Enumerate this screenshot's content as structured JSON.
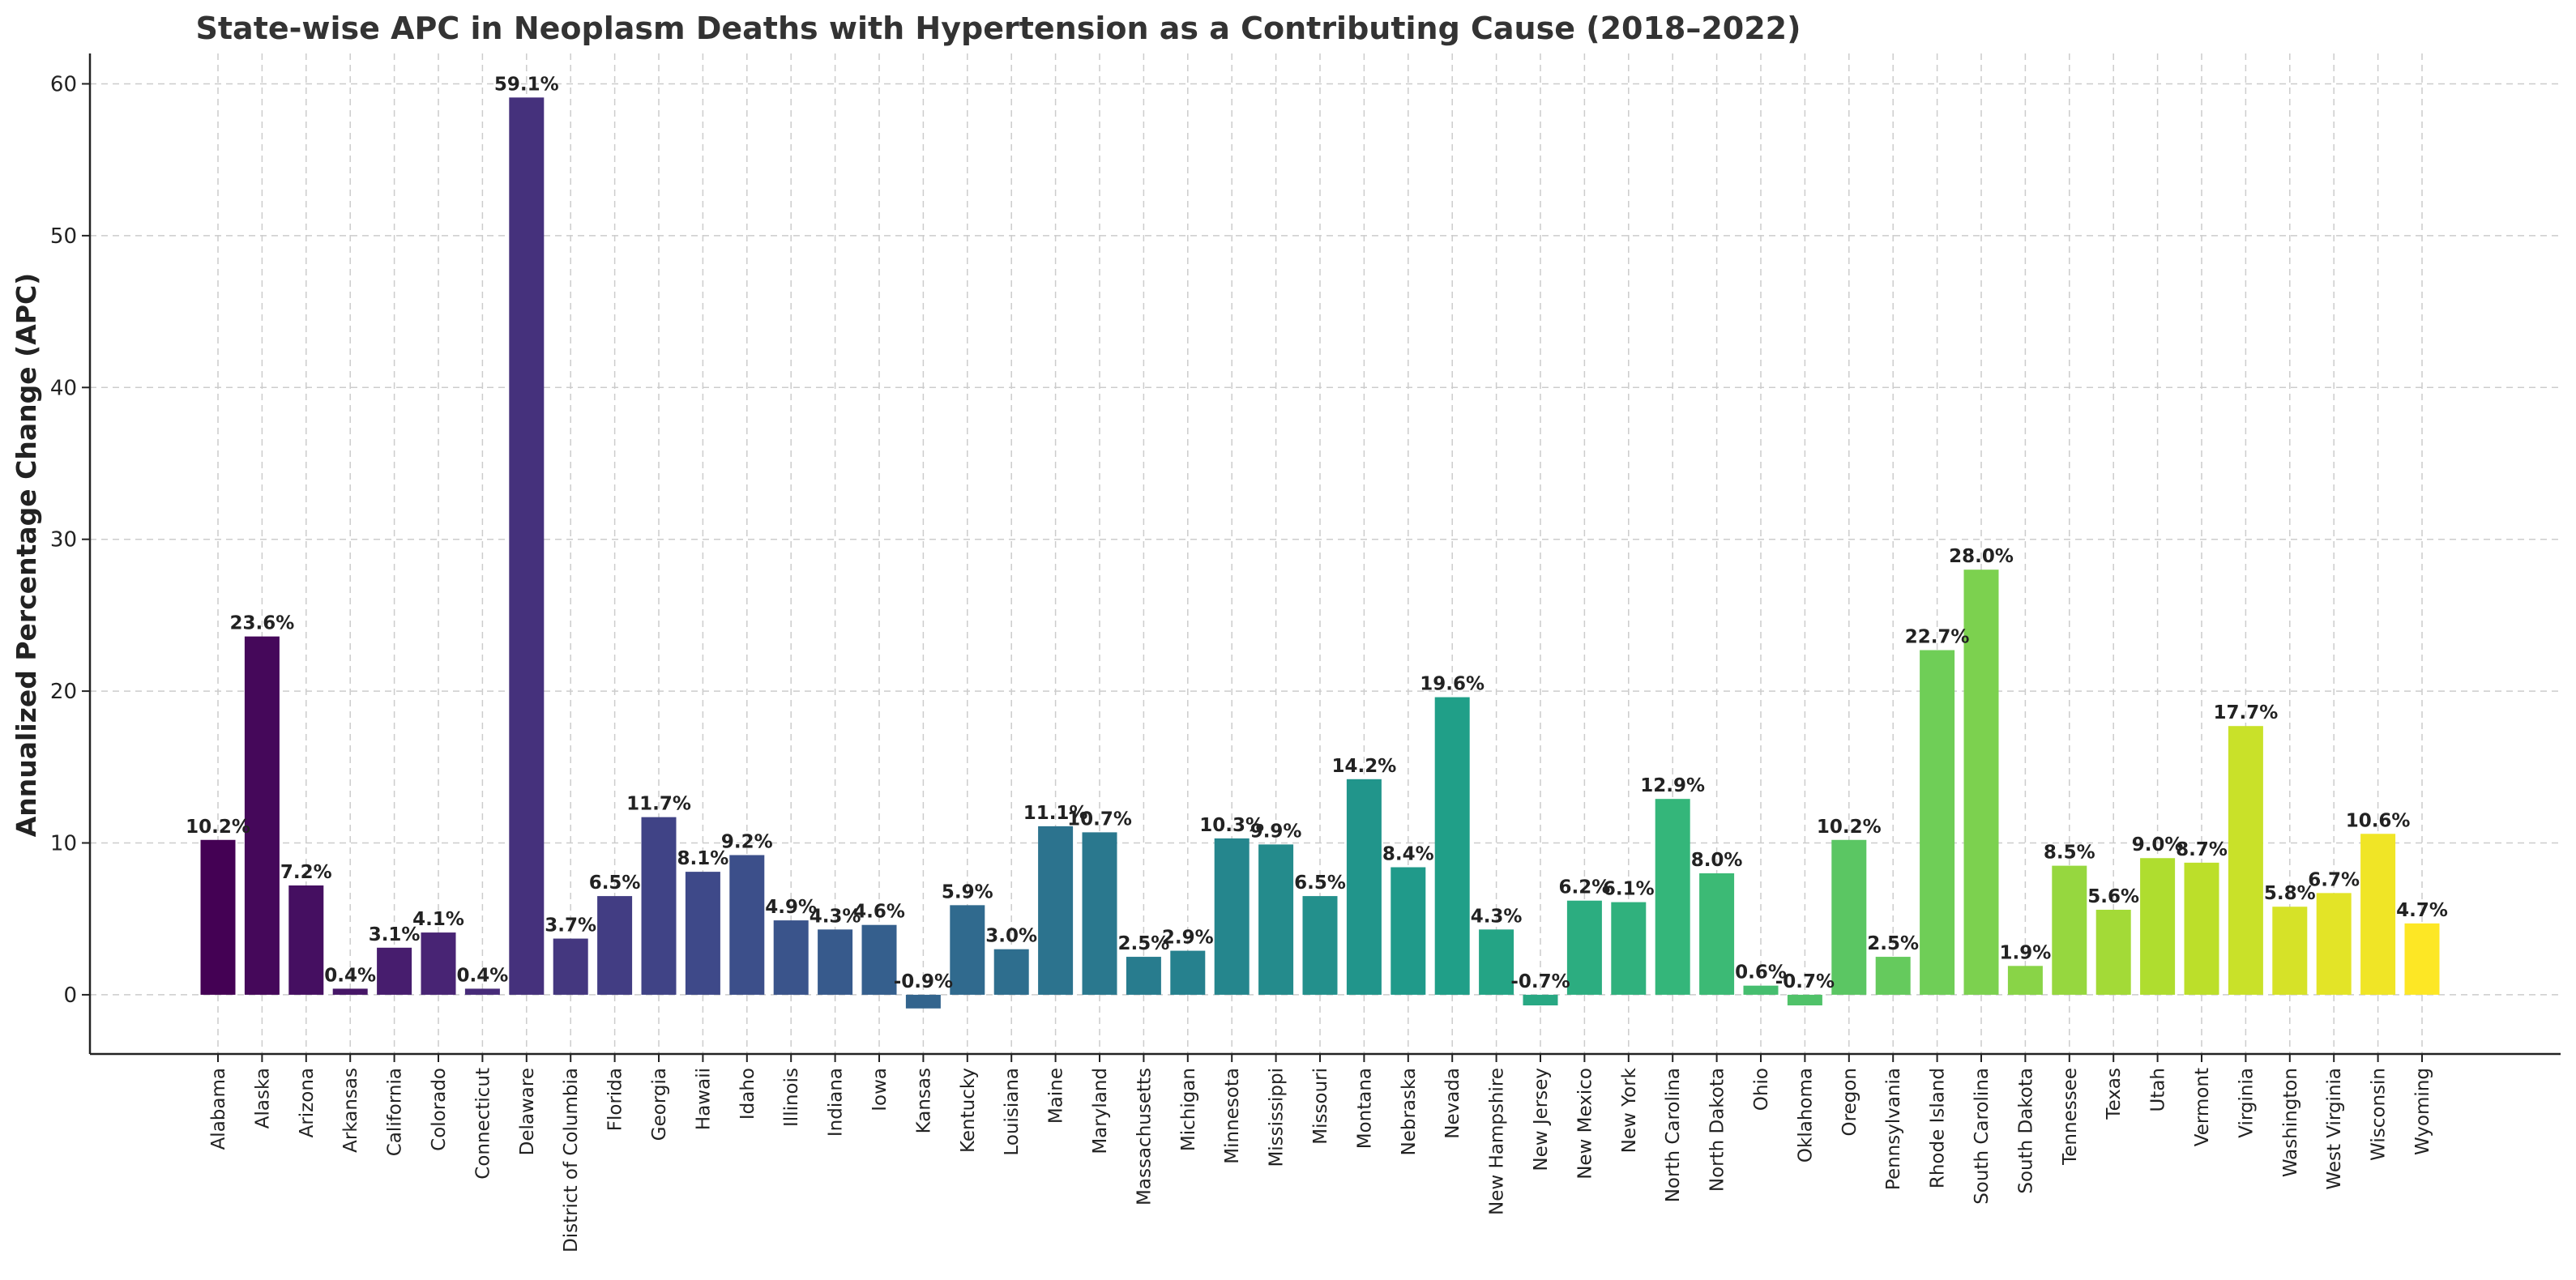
{
  "chart_data": {
    "type": "bar",
    "title": "State-wise APC in Neoplasm Deaths with Hypertension as a Contributing Cause (2018–2022)",
    "xlabel": "",
    "ylabel": "Annualized Percentage Change (APC)",
    "ylim": [
      -3.9,
      62
    ],
    "yticks": [
      0,
      10,
      20,
      30,
      40,
      50,
      60
    ],
    "grid": true,
    "colormap": "viridis",
    "categories": [
      "Alabama",
      "Alaska",
      "Arizona",
      "Arkansas",
      "California",
      "Colorado",
      "Connecticut",
      "Delaware",
      "District of Columbia",
      "Florida",
      "Georgia",
      "Hawaii",
      "Idaho",
      "Illinois",
      "Indiana",
      "Iowa",
      "Kansas",
      "Kentucky",
      "Louisiana",
      "Maine",
      "Maryland",
      "Massachusetts",
      "Michigan",
      "Minnesota",
      "Mississippi",
      "Missouri",
      "Montana",
      "Nebraska",
      "Nevada",
      "New Hampshire",
      "New Jersey",
      "New Mexico",
      "New York",
      "North Carolina",
      "North Dakota",
      "Ohio",
      "Oklahoma",
      "Oregon",
      "Pennsylvania",
      "Rhode Island",
      "South Carolina",
      "South Dakota",
      "Tennessee",
      "Texas",
      "Utah",
      "Vermont",
      "Virginia",
      "Washington",
      "West Virginia",
      "Wisconsin",
      "Wyoming"
    ],
    "values": [
      10.2,
      23.6,
      7.2,
      0.4,
      3.1,
      4.1,
      0.4,
      59.1,
      3.7,
      6.5,
      11.7,
      8.1,
      9.2,
      4.9,
      4.3,
      4.6,
      -0.9,
      5.9,
      3.0,
      11.1,
      10.7,
      2.5,
      2.9,
      10.3,
      9.9,
      6.5,
      14.2,
      8.4,
      19.6,
      4.3,
      -0.7,
      6.2,
      6.1,
      12.9,
      8.0,
      0.6,
      -0.7,
      10.2,
      2.5,
      22.7,
      28.0,
      1.9,
      8.5,
      5.6,
      9.0,
      8.7,
      17.7,
      5.8,
      6.7,
      10.6,
      4.7
    ],
    "data_labels": [
      "10.2%",
      "23.6%",
      "7.2%",
      "0.4%",
      "3.1%",
      "4.1%",
      "0.4%",
      "59.1%",
      "3.7%",
      "6.5%",
      "11.7%",
      "8.1%",
      "9.2%",
      "4.9%",
      "4.3%",
      "4.6%",
      "-0.9%",
      "5.9%",
      "3.0%",
      "11.1%",
      "10.7%",
      "2.5%",
      "2.9%",
      "10.3%",
      "9.9%",
      "6.5%",
      "14.2%",
      "8.4%",
      "19.6%",
      "4.3%",
      "-0.7%",
      "6.2%",
      "6.1%",
      "12.9%",
      "8.0%",
      "0.6%",
      "-0.7%",
      "10.2%",
      "2.5%",
      "22.7%",
      "28.0%",
      "1.9%",
      "8.5%",
      "5.6%",
      "9.0%",
      "8.7%",
      "17.7%",
      "5.8%",
      "6.7%",
      "10.6%",
      "4.7%"
    ]
  }
}
